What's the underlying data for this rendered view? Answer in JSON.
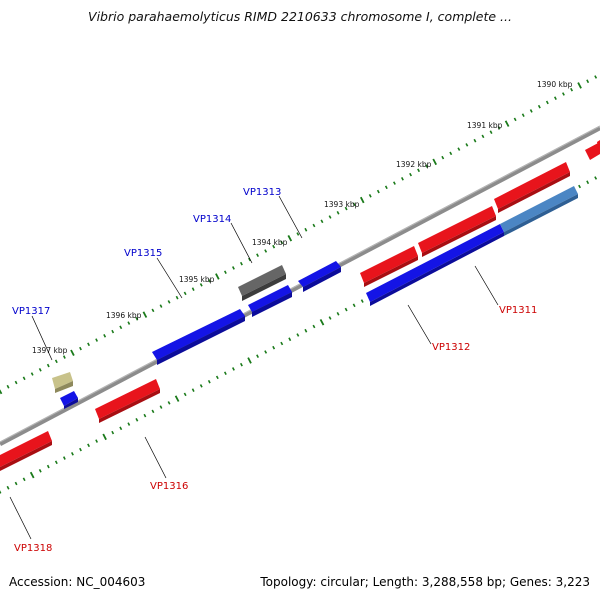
{
  "title": "Vibrio parahaemolyticus RIMD 2210633 chromosome I, complete ...",
  "footer": {
    "accession": "Accession: NC_004603",
    "summary": "Topology: circular; Length: 3,288,558 bp; Genes: 3,223"
  },
  "scale_labels": [
    "1390 kbp",
    "1391 kbp",
    "1392 kbp",
    "1393 kbp",
    "1394 kbp",
    "1395 kbp",
    "1396 kbp",
    "1397 kbp"
  ],
  "gene_labels": [
    "VP1311",
    "VP1312",
    "VP1313",
    "VP1314",
    "VP1315",
    "VP1316",
    "VP1317",
    "VP1318"
  ],
  "colors": {
    "backbone": "#8c8c8c",
    "tick": "#1a7a1a",
    "forward_gene": "#e8141c",
    "reverse_gene": "#1414e6",
    "reverse_gene_light": "#4b86c4",
    "pseudo_gene": "#666666",
    "rna_gene": "#c8c28a",
    "label_forward": "#cc0000",
    "label_reverse": "#0000cc"
  }
}
